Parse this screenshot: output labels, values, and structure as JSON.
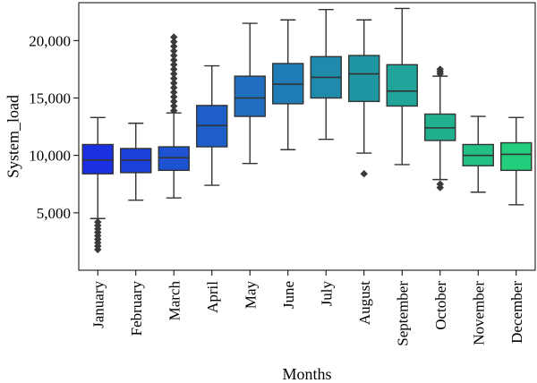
{
  "chart_data": {
    "type": "box",
    "xlabel": "Months",
    "ylabel": "System_load",
    "ylim": [
      0,
      23300
    ],
    "yticks": [
      5000,
      10000,
      15000,
      20000
    ],
    "ytick_labels": [
      "5,000",
      "10,000",
      "15,000",
      "20,000"
    ],
    "grid": false,
    "legend": "none",
    "categories": [
      "January",
      "February",
      "March",
      "April",
      "May",
      "June",
      "July",
      "August",
      "September",
      "October",
      "November",
      "December"
    ],
    "boxes": [
      {
        "month": "January",
        "whisker_low": 4500,
        "q1": 8400,
        "median": 9600,
        "q3": 10950,
        "whisker_high": 13300,
        "outliers": [
          1800,
          2100,
          2400,
          2700,
          3000,
          3300,
          3600,
          3900,
          4200
        ],
        "color": "#1c30e3"
      },
      {
        "month": "February",
        "whisker_low": 6100,
        "q1": 8500,
        "median": 9600,
        "q3": 10600,
        "whisker_high": 12800,
        "outliers": [],
        "color": "#1b3fdb"
      },
      {
        "month": "March",
        "whisker_low": 6300,
        "q1": 8700,
        "median": 9800,
        "q3": 10750,
        "whisker_high": 13700,
        "outliers": [
          13900,
          14300,
          14700,
          15100,
          15500,
          15900,
          16300,
          16700,
          17100,
          17500,
          17900,
          18300,
          18700,
          19100,
          19500,
          19900,
          20300
        ],
        "color": "#1d52d2"
      },
      {
        "month": "April",
        "whisker_low": 7400,
        "q1": 10750,
        "median": 12600,
        "q3": 14350,
        "whisker_high": 17800,
        "outliers": [],
        "color": "#1e5ec9"
      },
      {
        "month": "May",
        "whisker_low": 9300,
        "q1": 13400,
        "median": 15000,
        "q3": 16900,
        "whisker_high": 21500,
        "outliers": [],
        "color": "#1f6ec0"
      },
      {
        "month": "June",
        "whisker_low": 10500,
        "q1": 14500,
        "median": 16200,
        "q3": 18000,
        "whisker_high": 21800,
        "outliers": [],
        "color": "#1e7cb6"
      },
      {
        "month": "July",
        "whisker_low": 11400,
        "q1": 15000,
        "median": 16800,
        "q3": 18600,
        "whisker_high": 22700,
        "outliers": [],
        "color": "#1e8aac"
      },
      {
        "month": "August",
        "whisker_low": 10200,
        "q1": 14700,
        "median": 17100,
        "q3": 18700,
        "whisker_high": 21800,
        "outliers": [
          8400
        ],
        "color": "#1f96a2"
      },
      {
        "month": "September",
        "whisker_low": 9200,
        "q1": 14300,
        "median": 15600,
        "q3": 17900,
        "whisker_high": 22800,
        "outliers": [],
        "color": "#20a398"
      },
      {
        "month": "October",
        "whisker_low": 7900,
        "q1": 11300,
        "median": 12400,
        "q3": 13600,
        "whisker_high": 16900,
        "outliers": [
          7200,
          7500,
          17100,
          17300,
          17500
        ],
        "color": "#21b08d"
      },
      {
        "month": "November",
        "whisker_low": 6800,
        "q1": 9100,
        "median": 10000,
        "q3": 10950,
        "whisker_high": 13400,
        "outliers": [],
        "color": "#22c083"
      },
      {
        "month": "December",
        "whisker_low": 5700,
        "q1": 8700,
        "median": 10100,
        "q3": 11100,
        "whisker_high": 13300,
        "outliers": [],
        "color": "#22cd7b"
      }
    ]
  }
}
